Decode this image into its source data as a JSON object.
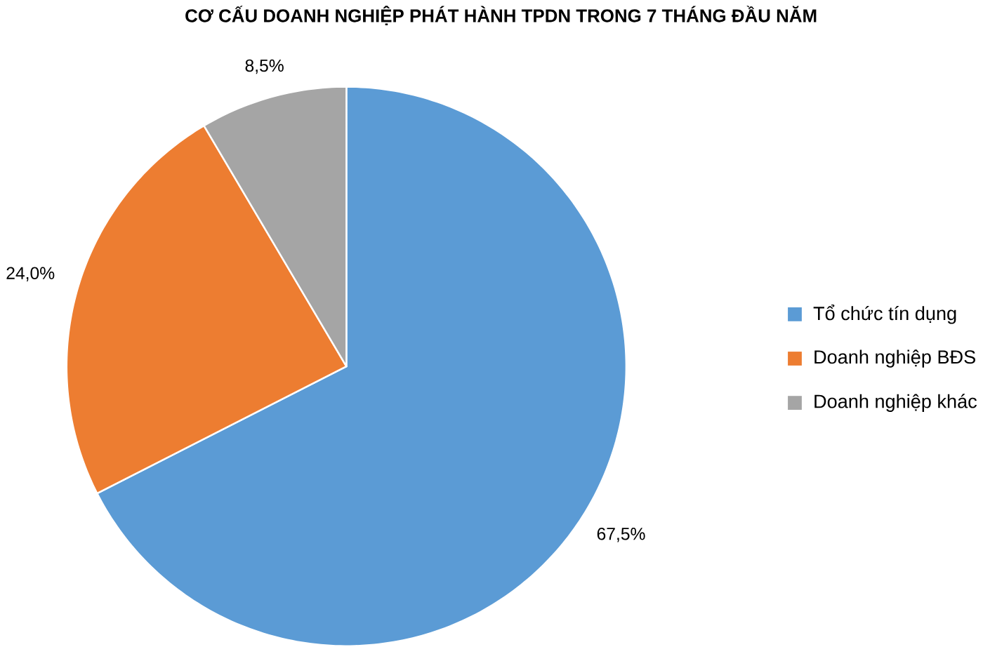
{
  "chart_data": {
    "type": "pie",
    "title": "CƠ CẤU DOANH NGHIỆP PHÁT HÀNH TPDN TRONG 7 THÁNG ĐẦU NĂM",
    "categories": [
      "Tổ chức tín dụng",
      "Doanh nghiệp BĐS",
      "Doanh nghiệp khác"
    ],
    "values": [
      67.5,
      24.0,
      8.5
    ],
    "value_labels": [
      "67,5%",
      "24,0%",
      "8,5%"
    ],
    "colors": [
      "#5b9bd5",
      "#ed7d31",
      "#a5a5a5"
    ],
    "legend": "right"
  }
}
